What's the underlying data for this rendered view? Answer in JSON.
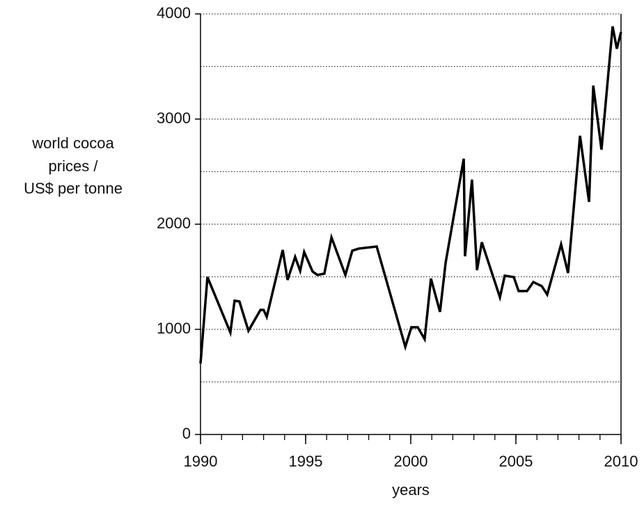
{
  "chart_data": {
    "type": "line",
    "xlabel": "years",
    "ylabel": [
      "world cocoa",
      "prices /",
      "US$ per tonne"
    ],
    "x": [
      1990.0,
      1990.33,
      1991.42,
      1991.62,
      1991.85,
      1992.28,
      1992.85,
      1993.0,
      1993.15,
      1993.91,
      1994.14,
      1994.5,
      1994.74,
      1994.93,
      1995.33,
      1995.56,
      1995.89,
      1996.23,
      1996.89,
      1997.22,
      1997.52,
      1998.38,
      1999.74,
      2000.03,
      2000.33,
      2000.66,
      2000.96,
      2001.39,
      2001.66,
      2002.52,
      2002.58,
      2002.91,
      2003.15,
      2003.38,
      2004.24,
      2004.47,
      2004.9,
      2005.13,
      2005.53,
      2005.83,
      2006.23,
      2006.49,
      2007.15,
      2007.48,
      2008.05,
      2008.48,
      2008.68,
      2009.07,
      2009.6,
      2009.8,
      2010.0
    ],
    "series": [
      {
        "color": "#000000",
        "values": [
          675,
          1497,
          970,
          1272,
          1265,
          987,
          1185,
          1185,
          1119,
          1755,
          1470,
          1689,
          1556,
          1735,
          1550,
          1517,
          1530,
          1874,
          1517,
          1748,
          1768,
          1788,
          834,
          1020,
          1020,
          907,
          1483,
          1166,
          1636,
          2623,
          1695,
          2424,
          1563,
          1828,
          1305,
          1510,
          1497,
          1364,
          1364,
          1450,
          1411,
          1331,
          1808,
          1536,
          2841,
          2212,
          3318,
          2709,
          3881,
          3669,
          3828
        ]
      }
    ],
    "xlim": [
      1990,
      2010
    ],
    "xticks": [
      1990,
      1995,
      2000,
      2005,
      2010
    ],
    "xminor_step": 1,
    "ylim": [
      0,
      4000
    ],
    "yticks": [
      0,
      1000,
      2000,
      3000,
      4000
    ],
    "yminor": [
      500,
      1500,
      2500,
      3500
    ],
    "grid": true
  }
}
